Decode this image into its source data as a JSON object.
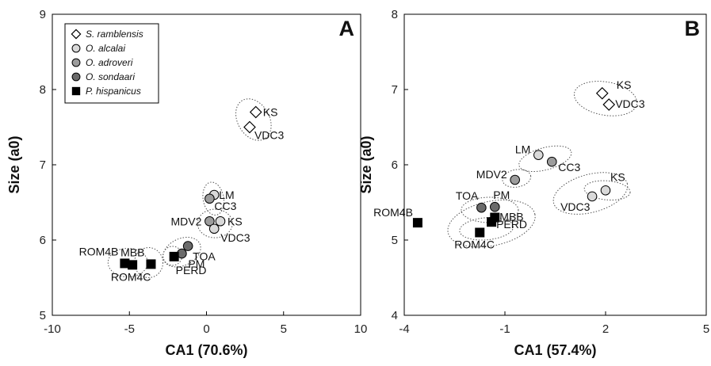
{
  "legend": [
    {
      "name": "S. ramblensis",
      "marker": "diamond",
      "color": "#ffffff"
    },
    {
      "name": "O. alcalai",
      "marker": "circle",
      "color": "#d9d9d9"
    },
    {
      "name": "O. adroveri",
      "marker": "circle",
      "color": "#9c9c9c"
    },
    {
      "name": "O. sondaari",
      "marker": "circle",
      "color": "#6a6a6a"
    },
    {
      "name": "P. hispanicus",
      "marker": "square",
      "color": "#000000"
    }
  ],
  "chart_data": [
    {
      "type": "scatter",
      "panel_label": "A",
      "xlabel": "CA1 (70.6%)",
      "ylabel": "Size (a0)",
      "xlim": [
        -10,
        10
      ],
      "ylim": [
        5,
        9
      ],
      "xticks": [
        -10,
        -5,
        0,
        5,
        10
      ],
      "yticks": [
        5,
        6,
        7,
        8,
        9
      ],
      "legend_position": "top-left",
      "points": [
        {
          "label": "KS",
          "series": "S. ramblensis",
          "x": 3.2,
          "y": 7.7
        },
        {
          "label": "VDC3",
          "series": "S. ramblensis",
          "x": 2.8,
          "y": 7.5
        },
        {
          "label": "LM",
          "series": "O. alcalai",
          "x": 0.5,
          "y": 6.6
        },
        {
          "label": "CC3",
          "series": "O. adroveri",
          "x": 0.2,
          "y": 6.55
        },
        {
          "label": "MDV2",
          "series": "O. adroveri",
          "x": 0.2,
          "y": 6.25
        },
        {
          "label": "KS",
          "series": "O. alcalai",
          "x": 0.9,
          "y": 6.25
        },
        {
          "label": "VDC3",
          "series": "O. alcalai",
          "x": 0.5,
          "y": 6.15
        },
        {
          "label": "TOA",
          "series": "O. sondaari",
          "x": -1.2,
          "y": 5.92
        },
        {
          "label": "PM",
          "series": "O. sondaari",
          "x": -1.6,
          "y": 5.82
        },
        {
          "label": "PERD",
          "series": "P. hispanicus",
          "x": -2.1,
          "y": 5.78
        },
        {
          "label": "MBB",
          "series": "P. hispanicus",
          "x": -3.6,
          "y": 5.68
        },
        {
          "label": "ROM4B",
          "series": "P. hispanicus",
          "x": -5.3,
          "y": 5.69
        },
        {
          "label": "ROM4C",
          "series": "P. hispanicus",
          "x": -4.8,
          "y": 5.67
        }
      ]
    },
    {
      "type": "scatter",
      "panel_label": "B",
      "xlabel": "CA1 (57.4%)",
      "ylabel": "Size (a0)",
      "xlim": [
        -4,
        5
      ],
      "ylim": [
        4,
        8
      ],
      "xticks": [
        -4,
        -1,
        2,
        5
      ],
      "xtick_labels": [
        "-4",
        "-1",
        "2",
        "5"
      ],
      "yticks": [
        4,
        5,
        6,
        7,
        8
      ],
      "legend_position": "none",
      "points": [
        {
          "label": "KS",
          "series": "S. ramblensis",
          "x": 1.9,
          "y": 6.95
        },
        {
          "label": "VDC3",
          "series": "S. ramblensis",
          "x": 2.1,
          "y": 6.8
        },
        {
          "label": "LM",
          "series": "O. alcalai",
          "x": 0.0,
          "y": 6.13
        },
        {
          "label": "CC3",
          "series": "O. adroveri",
          "x": 0.4,
          "y": 6.04
        },
        {
          "label": "MDV2",
          "series": "O. adroveri",
          "x": -0.7,
          "y": 5.8
        },
        {
          "label": "KS",
          "series": "O. alcalai",
          "x": 2.0,
          "y": 5.66
        },
        {
          "label": "VDC3",
          "series": "O. alcalai",
          "x": 1.6,
          "y": 5.58
        },
        {
          "label": "TOA",
          "series": "O. sondaari",
          "x": -1.7,
          "y": 5.43
        },
        {
          "label": "PM",
          "series": "O. sondaari",
          "x": -1.3,
          "y": 5.44
        },
        {
          "label": "MBB",
          "series": "P. hispanicus",
          "x": -1.3,
          "y": 5.3
        },
        {
          "label": "PERD",
          "series": "P. hispanicus",
          "x": -1.4,
          "y": 5.24
        },
        {
          "label": "ROM4B",
          "series": "P. hispanicus",
          "x": -3.6,
          "y": 5.23
        },
        {
          "label": "ROM4C",
          "series": "P. hispanicus",
          "x": -1.75,
          "y": 5.1
        }
      ]
    }
  ]
}
